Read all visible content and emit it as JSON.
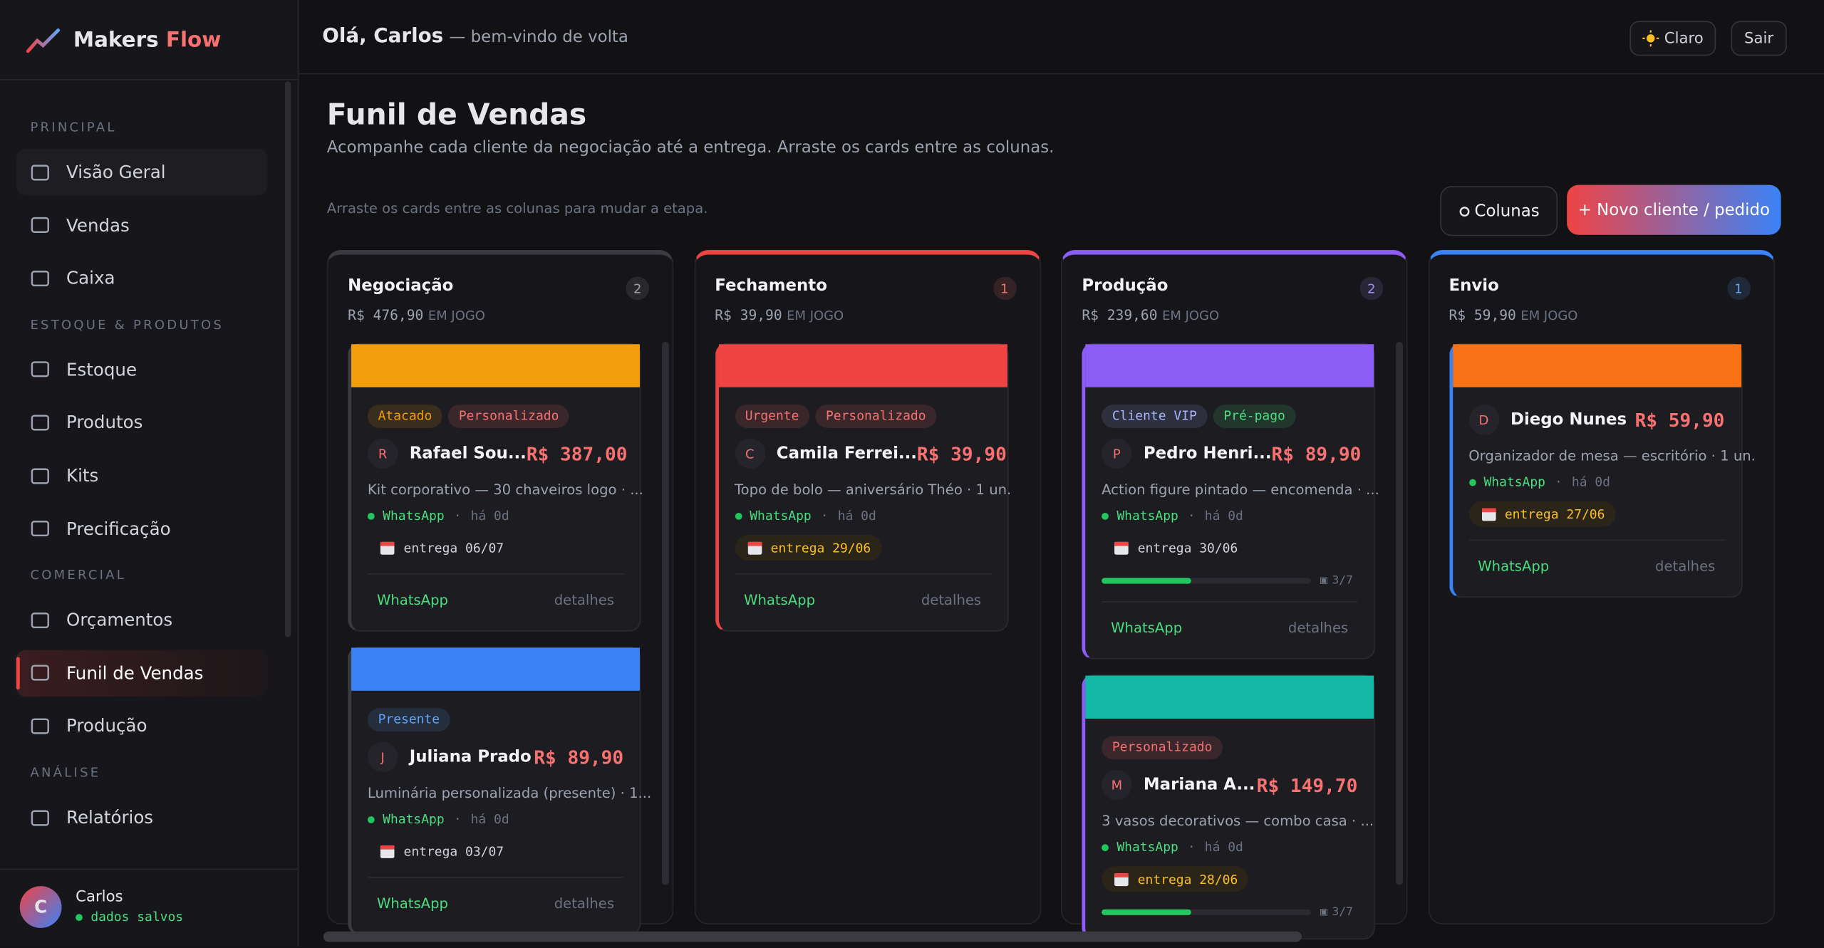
{
  "sidebar": {
    "brand": {
      "name": "Makers",
      "accent": "Flow"
    },
    "sections": [
      {
        "title": "PRINCIPAL",
        "items": [
          {
            "label": "Visão Geral",
            "hover": true
          },
          {
            "label": "Vendas"
          },
          {
            "label": "Caixa"
          }
        ]
      },
      {
        "title": "ESTOQUE & PRODUTOS",
        "items": [
          {
            "label": "Estoque"
          },
          {
            "label": "Produtos"
          },
          {
            "label": "Kits"
          },
          {
            "label": "Precificação"
          }
        ]
      },
      {
        "title": "COMERCIAL",
        "items": [
          {
            "label": "Orçamentos"
          },
          {
            "label": "Funil de Vendas",
            "active": true
          },
          {
            "label": "Produção"
          }
        ]
      },
      {
        "title": "ANÁLISE",
        "items": [
          {
            "label": "Relatórios"
          }
        ]
      }
    ],
    "user": {
      "initial": "C",
      "name": "Carlos",
      "status": "dados salvos"
    }
  },
  "header": {
    "greeting": "Olá, Carlos",
    "welcome": "— bem-vindo de volta",
    "buttons": [
      "Claro",
      "Sair"
    ]
  },
  "page": {
    "title": "Funil de Vendas",
    "subtitle": "Acompanhe cada cliente da negociação até a entrega. Arraste os cards entre as colunas.",
    "hint": "Arraste os cards entre as colunas para mudar a etapa.",
    "buttons": [
      "Colunas",
      "+ Novo cliente / pedido"
    ]
  },
  "columns": [
    {
      "title": "Negociação",
      "count": 2,
      "total": "R$ 476,90",
      "total_label": "EM JOGO",
      "color": "#3a3a41",
      "badge": "#a1a1aa",
      "cards": [
        {
          "color": "#f59e0b",
          "tags": [
            {
              "label": "Atacado",
              "color": "#f59e0b"
            },
            {
              "label": "Personalizado",
              "color": "#f87171"
            }
          ],
          "initial": "R",
          "name": "Rafael Sou...",
          "price": "R$ 387,00",
          "description": "Kit corporativo — 30 chaveiros logo · ...",
          "channel": "WhatsApp",
          "age": "há 0d",
          "delivery": "entrega 06/07",
          "delivery_highlight": false,
          "action": "WhatsApp",
          "details": "detalhes"
        },
        {
          "color": "#3b82f6",
          "tags": [
            {
              "label": "Presente",
              "color": "#60a5fa"
            }
          ],
          "initial": "J",
          "name": "Juliana Prado",
          "price": "R$ 89,90",
          "description": "Luminária personalizada (presente) · 1...",
          "channel": "WhatsApp",
          "age": "há 0d",
          "delivery": "entrega 03/07",
          "delivery_highlight": false,
          "action": "WhatsApp",
          "details": "detalhes"
        }
      ]
    },
    {
      "title": "Fechamento",
      "count": 1,
      "total": "R$ 39,90",
      "total_label": "EM JOGO",
      "color": "#ef4444",
      "badge": "#f87171",
      "cards": [
        {
          "color": "#ef4444",
          "tags": [
            {
              "label": "Urgente",
              "color": "#f87171"
            },
            {
              "label": "Personalizado",
              "color": "#f87171"
            }
          ],
          "initial": "C",
          "name": "Camila Ferrei...",
          "price": "R$ 39,90",
          "description": "Topo de bolo — aniversário Théo · 1 un.",
          "channel": "WhatsApp",
          "age": "há 0d",
          "delivery": "entrega 29/06",
          "delivery_highlight": true,
          "action": "WhatsApp",
          "details": "detalhes"
        }
      ]
    },
    {
      "title": "Produção",
      "count": 2,
      "total": "R$ 239,60",
      "total_label": "EM JOGO",
      "color": "#8b5cf6",
      "badge": "#a78bfa",
      "cards": [
        {
          "color": "#8b5cf6",
          "tags": [
            {
              "label": "Cliente VIP",
              "color": "#a5b4fc"
            },
            {
              "label": "Pré-pago",
              "color": "#4ade80"
            }
          ],
          "initial": "P",
          "name": "Pedro Henri...",
          "price": "R$ 89,90",
          "description": "Action figure pintado — encomenda · ...",
          "channel": "WhatsApp",
          "age": "há 0d",
          "delivery": "entrega 30/06",
          "delivery_highlight": false,
          "progress_done": 3,
          "progress_total": 7,
          "progress_label": "3/7",
          "action": "WhatsApp",
          "details": "detalhes"
        },
        {
          "color": "#14b8a6",
          "tags": [
            {
              "label": "Personalizado",
              "color": "#f87171"
            }
          ],
          "initial": "M",
          "name": "Mariana A...",
          "price": "R$ 149,70",
          "description": "3 vasos decorativos — combo casa · ...",
          "channel": "WhatsApp",
          "age": "há 0d",
          "delivery": "entrega 28/06",
          "delivery_highlight": true,
          "progress_done": 3,
          "progress_total": 7,
          "progress_label": "3/7"
        }
      ]
    },
    {
      "title": "Envio",
      "count": 1,
      "total": "R$ 59,90",
      "total_label": "EM JOGO",
      "color": "#3b82f6",
      "badge": "#60a5fa",
      "cards": [
        {
          "color": "#f97316",
          "tags": [],
          "initial": "D",
          "name": "Diego Nunes",
          "price": "R$ 59,90",
          "description": "Organizador de mesa — escritório · 1 un.",
          "channel": "WhatsApp",
          "age": "há 0d",
          "delivery": "entrega 27/06",
          "delivery_highlight": true,
          "action": "WhatsApp",
          "details": "detalhes"
        }
      ]
    }
  ]
}
